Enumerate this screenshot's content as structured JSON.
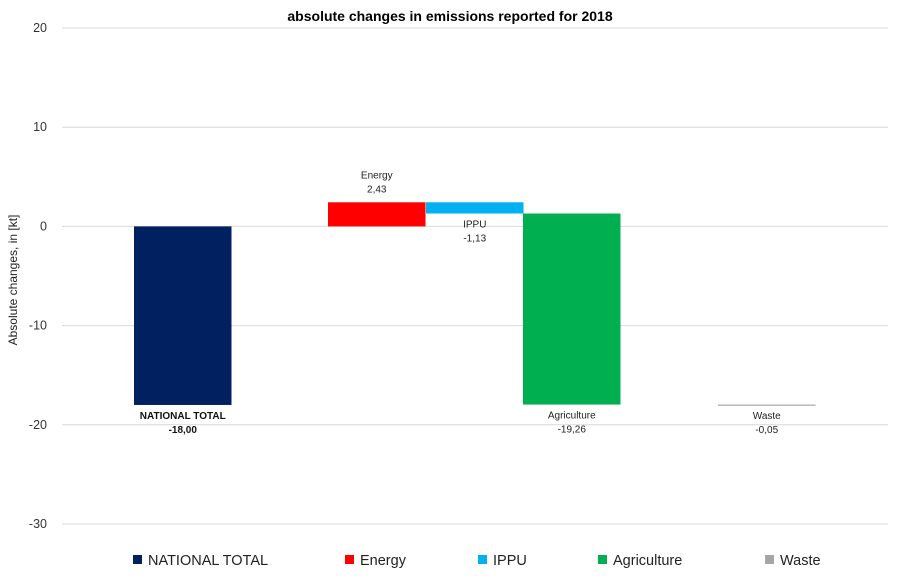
{
  "chart_data": {
    "type": "bar",
    "title": "absolute changes in emissions reported for 2018",
    "ylabel": "Absolute changes, in [kt]",
    "xlabel": "",
    "ylim": [
      -30,
      20
    ],
    "yticks": [
      20,
      10,
      0,
      -10,
      -20,
      -30
    ],
    "grid": true,
    "legend_position": "bottom",
    "bars": [
      {
        "category": "NATIONAL TOTAL",
        "value": -18.0,
        "label": "-18,00",
        "color": "#002060",
        "bold": true
      },
      {
        "category": "Energy",
        "value": 2.43,
        "label": "2,43",
        "color": "#ff0000",
        "bold": false
      },
      {
        "category": "IPPU",
        "value": -1.13,
        "label": "-1,13",
        "color": "#00b0f0",
        "bold": false
      },
      {
        "category": "Agriculture",
        "value": -19.26,
        "label": "-19,26",
        "color": "#00b050",
        "bold": false
      },
      {
        "category": "Waste",
        "value": -0.05,
        "label": "-0,05",
        "color": "#a6a6a6",
        "bold": false
      }
    ]
  }
}
